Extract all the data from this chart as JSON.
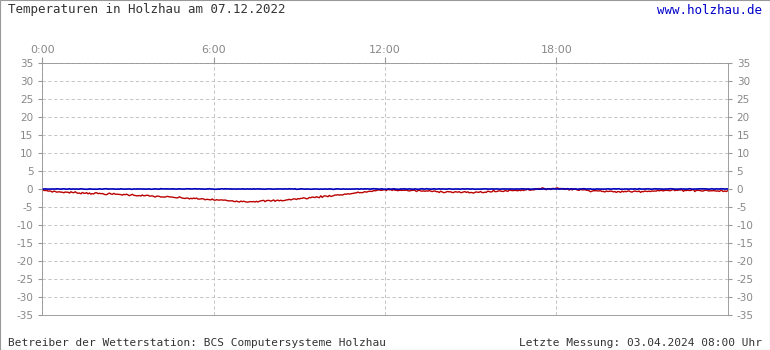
{
  "title": "Temperaturen in Holzhau am 07.12.2022",
  "url": "www.holzhau.de",
  "footer_left": "Betreiber der Wetterstation: BCS Computersysteme Holzhau",
  "footer_right": "Letzte Messung: 03.04.2024 08:00 Uhr",
  "xlim": [
    0,
    1440
  ],
  "ylim": [
    -35,
    35
  ],
  "xticks": [
    0,
    360,
    720,
    1080
  ],
  "xtick_labels": [
    "0:00",
    "6:00",
    "12:00",
    "18:00"
  ],
  "yticks": [
    -35,
    -30,
    -25,
    -20,
    -15,
    -10,
    -5,
    0,
    5,
    10,
    15,
    20,
    25,
    30,
    35
  ],
  "bg_color": "#ffffff",
  "grid_color": "#bbbbbb",
  "line_blue_color": "#0000bb",
  "line_red_color": "#bb0000",
  "border_color": "#999999",
  "tick_color": "#999999",
  "label_color": "#888888",
  "title_color": "#333333",
  "url_color": "#0000cc",
  "footer_color": "#333333"
}
